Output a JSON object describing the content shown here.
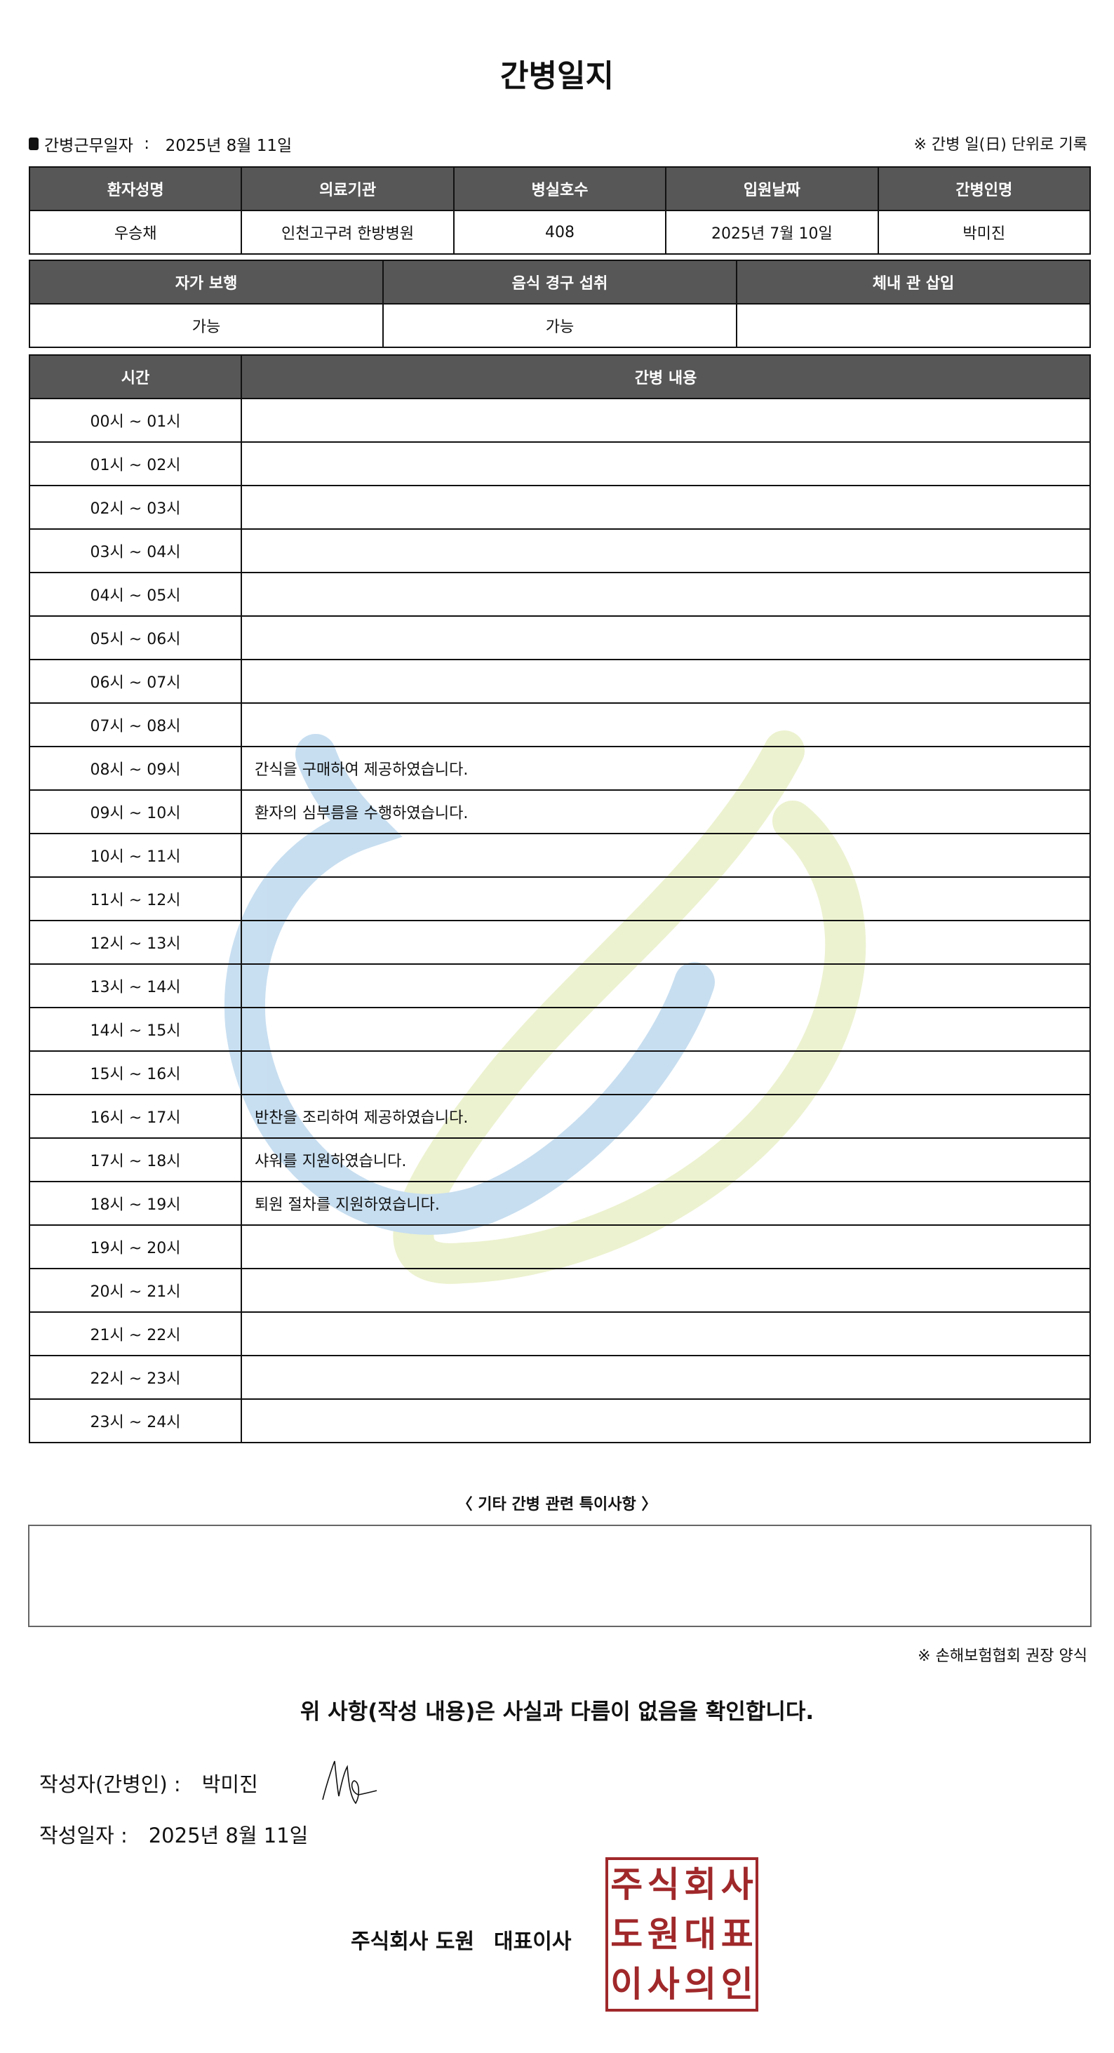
{
  "title": "간병일지",
  "work_date_label": "간병근무일자",
  "work_date": "2025년 8월 11일",
  "unit_note": "※ 간병 일(日) 단위로 기록",
  "info_table": {
    "headers": [
      "환자성명",
      "의료기관",
      "병실호수",
      "입원날짜",
      "간병인명"
    ],
    "values": [
      "우승채",
      "인천고구려 한방병원",
      "408",
      "2025년 7월 10일",
      "박미진"
    ]
  },
  "status_table": {
    "headers": [
      "자가 보행",
      "음식 경구 섭취",
      "체내 관 삽입"
    ],
    "values": [
      "가능",
      "가능",
      ""
    ]
  },
  "care_table": {
    "headers": [
      "시간",
      "간병 내용"
    ],
    "rows": [
      {
        "time": "00시 ~ 01시",
        "content": ""
      },
      {
        "time": "01시 ~ 02시",
        "content": ""
      },
      {
        "time": "02시 ~ 03시",
        "content": ""
      },
      {
        "time": "03시 ~ 04시",
        "content": ""
      },
      {
        "time": "04시 ~ 05시",
        "content": ""
      },
      {
        "time": "05시 ~ 06시",
        "content": ""
      },
      {
        "time": "06시 ~ 07시",
        "content": ""
      },
      {
        "time": "07시 ~ 08시",
        "content": ""
      },
      {
        "time": "08시 ~ 09시",
        "content": "간식을 구매하여 제공하였습니다."
      },
      {
        "time": "09시 ~ 10시",
        "content": "환자의 심부름을 수행하였습니다."
      },
      {
        "time": "10시 ~ 11시",
        "content": ""
      },
      {
        "time": "11시 ~ 12시",
        "content": ""
      },
      {
        "time": "12시 ~ 13시",
        "content": ""
      },
      {
        "time": "13시 ~ 14시",
        "content": ""
      },
      {
        "time": "14시 ~ 15시",
        "content": ""
      },
      {
        "time": "15시 ~ 16시",
        "content": ""
      },
      {
        "time": "16시 ~ 17시",
        "content": "반찬을 조리하여 제공하였습니다."
      },
      {
        "time": "17시 ~ 18시",
        "content": "샤워를 지원하였습니다."
      },
      {
        "time": "18시 ~ 19시",
        "content": "퇴원 절차를 지원하였습니다."
      },
      {
        "time": "19시 ~ 20시",
        "content": ""
      },
      {
        "time": "20시 ~ 21시",
        "content": ""
      },
      {
        "time": "21시 ~ 22시",
        "content": ""
      },
      {
        "time": "22시 ~ 23시",
        "content": ""
      },
      {
        "time": "23시 ~ 24시",
        "content": ""
      }
    ]
  },
  "notes_title": "〈 기타 간병 관련 특이사항 〉",
  "notes": "",
  "form_note": "※ 손해보험협회 권장 양식",
  "confirm_text": "위 사항(작성 내용)은 사실과 다름이 없음을 확인합니다.",
  "writer_label": "작성자(간병인) :",
  "writer_name": "박미진",
  "written_date_label": "작성일자 :",
  "written_date": "2025년 8월 11일",
  "company": "주식회사 도원",
  "representative": "대표이사",
  "seal_text": [
    "주",
    "식",
    "회",
    "사",
    "도",
    "원",
    "대",
    "표",
    "이",
    "사",
    "의",
    "인"
  ],
  "colors": {
    "header_bg": "#575757",
    "seal": "#a0282a",
    "watermark_blue": "#b8d6ec",
    "watermark_green": "#e8efc4"
  }
}
